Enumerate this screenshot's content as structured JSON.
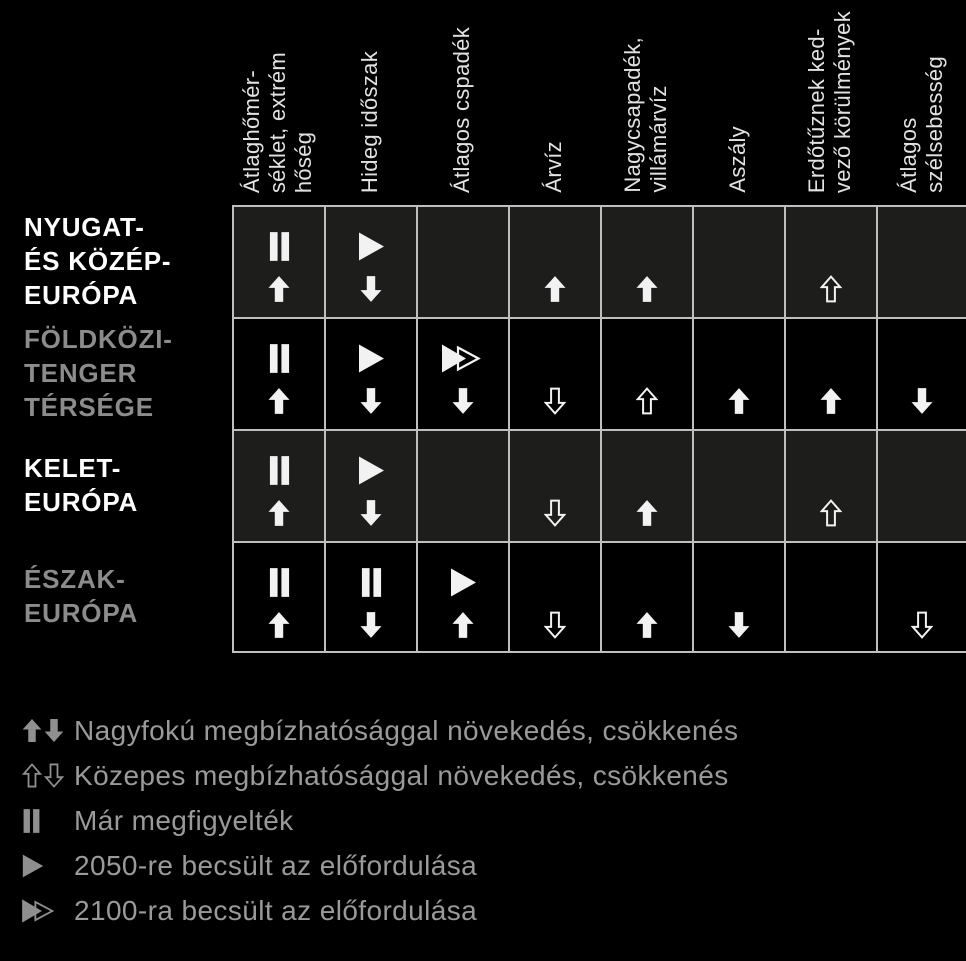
{
  "colors": {
    "background": "#000000",
    "grid_line": "#bfbfbf",
    "cell_symbol": "#f2f2f2",
    "row_light_background": "#1d1d1b",
    "row_dark_background": "#000000",
    "column_header_text": "#e2e2e2",
    "label_white": "#ffffff",
    "label_gray": "#8c8c8c",
    "legend_text": "#9a9a9a",
    "legend_icon": "#8f8f8f"
  },
  "chart_data": {
    "type": "table",
    "title": "",
    "columns": [
      "Átlaghőmér-\nséklet, extrém\nhőség",
      "Hideg időszak",
      "Átlagos cspadék",
      "Árvíz",
      "Nagycsapadék,\nvillámárvíz",
      "Aszály",
      "Erdőtűznek ked-\nvező körülmények",
      "Átlagos\nszélsebesség"
    ],
    "symbol_codes": {
      "pause": "már megfigyelték",
      "play": "2050-re becsült az előfordulása",
      "play-2100": "2100-ra becsült az előfordulása",
      "up": "nagyfokú megbízhatósággal növekedés",
      "down": "nagyfokú megbízhatósággal csökkenés",
      "up-outline": "közepes megbízhatósággal növekedés",
      "down-outline": "közepes megbízhatósággal csökkenés"
    },
    "rows": [
      {
        "label": "NYUGAT-\nÉS KÖZÉP-\nEURÓPA",
        "label_color": "#ffffff",
        "row_background": "#1d1d1b",
        "cells": [
          {
            "top": "pause",
            "bottom": "up"
          },
          {
            "top": "play",
            "bottom": "down"
          },
          {
            "top": null,
            "bottom": null
          },
          {
            "top": null,
            "bottom": "up"
          },
          {
            "top": null,
            "bottom": "up"
          },
          {
            "top": null,
            "bottom": null
          },
          {
            "top": null,
            "bottom": "up-outline"
          },
          {
            "top": null,
            "bottom": null
          }
        ]
      },
      {
        "label": "FÖLDKÖZI-\nTENGER\nTÉRSÉGE",
        "label_color": "#8c8c8c",
        "row_background": "#000000",
        "cells": [
          {
            "top": "pause",
            "bottom": "up"
          },
          {
            "top": "play",
            "bottom": "down"
          },
          {
            "top": "play-2100",
            "bottom": "down"
          },
          {
            "top": null,
            "bottom": "down-outline"
          },
          {
            "top": null,
            "bottom": "up-outline"
          },
          {
            "top": null,
            "bottom": "up"
          },
          {
            "top": null,
            "bottom": "up"
          },
          {
            "top": null,
            "bottom": "down"
          }
        ]
      },
      {
        "label": "KELET-\nEURÓPA",
        "label_color": "#ffffff",
        "row_background": "#1d1d1b",
        "cells": [
          {
            "top": "pause",
            "bottom": "up"
          },
          {
            "top": "play",
            "bottom": "down"
          },
          {
            "top": null,
            "bottom": null
          },
          {
            "top": null,
            "bottom": "down-outline"
          },
          {
            "top": null,
            "bottom": "up"
          },
          {
            "top": null,
            "bottom": null
          },
          {
            "top": null,
            "bottom": "up-outline"
          },
          {
            "top": null,
            "bottom": null
          }
        ]
      },
      {
        "label": "ÉSZAK-\nEURÓPA",
        "label_color": "#8c8c8c",
        "row_background": "#000000",
        "cells": [
          {
            "top": "pause",
            "bottom": "up"
          },
          {
            "top": "pause",
            "bottom": "down"
          },
          {
            "top": "play",
            "bottom": "up"
          },
          {
            "top": null,
            "bottom": "down-outline"
          },
          {
            "top": null,
            "bottom": "up"
          },
          {
            "top": null,
            "bottom": "down"
          },
          {
            "top": null,
            "bottom": null
          },
          {
            "top": null,
            "bottom": "down-outline"
          }
        ]
      }
    ]
  },
  "legend": {
    "items": [
      {
        "icons": [
          "up",
          "down"
        ],
        "label": "Nagyfokú megbízhatósággal növekedés, csökkenés"
      },
      {
        "icons": [
          "up-outline",
          "down-outline"
        ],
        "label": "Közepes megbízhatósággal növekedés, csökkenés"
      },
      {
        "icons": [
          "pause"
        ],
        "label": "Már megfigyelték"
      },
      {
        "icons": [
          "play"
        ],
        "label": "2050-re becsült az előfordulása"
      },
      {
        "icons": [
          "play-2100"
        ],
        "label": "2100-ra becsült az előfordulása"
      }
    ]
  }
}
